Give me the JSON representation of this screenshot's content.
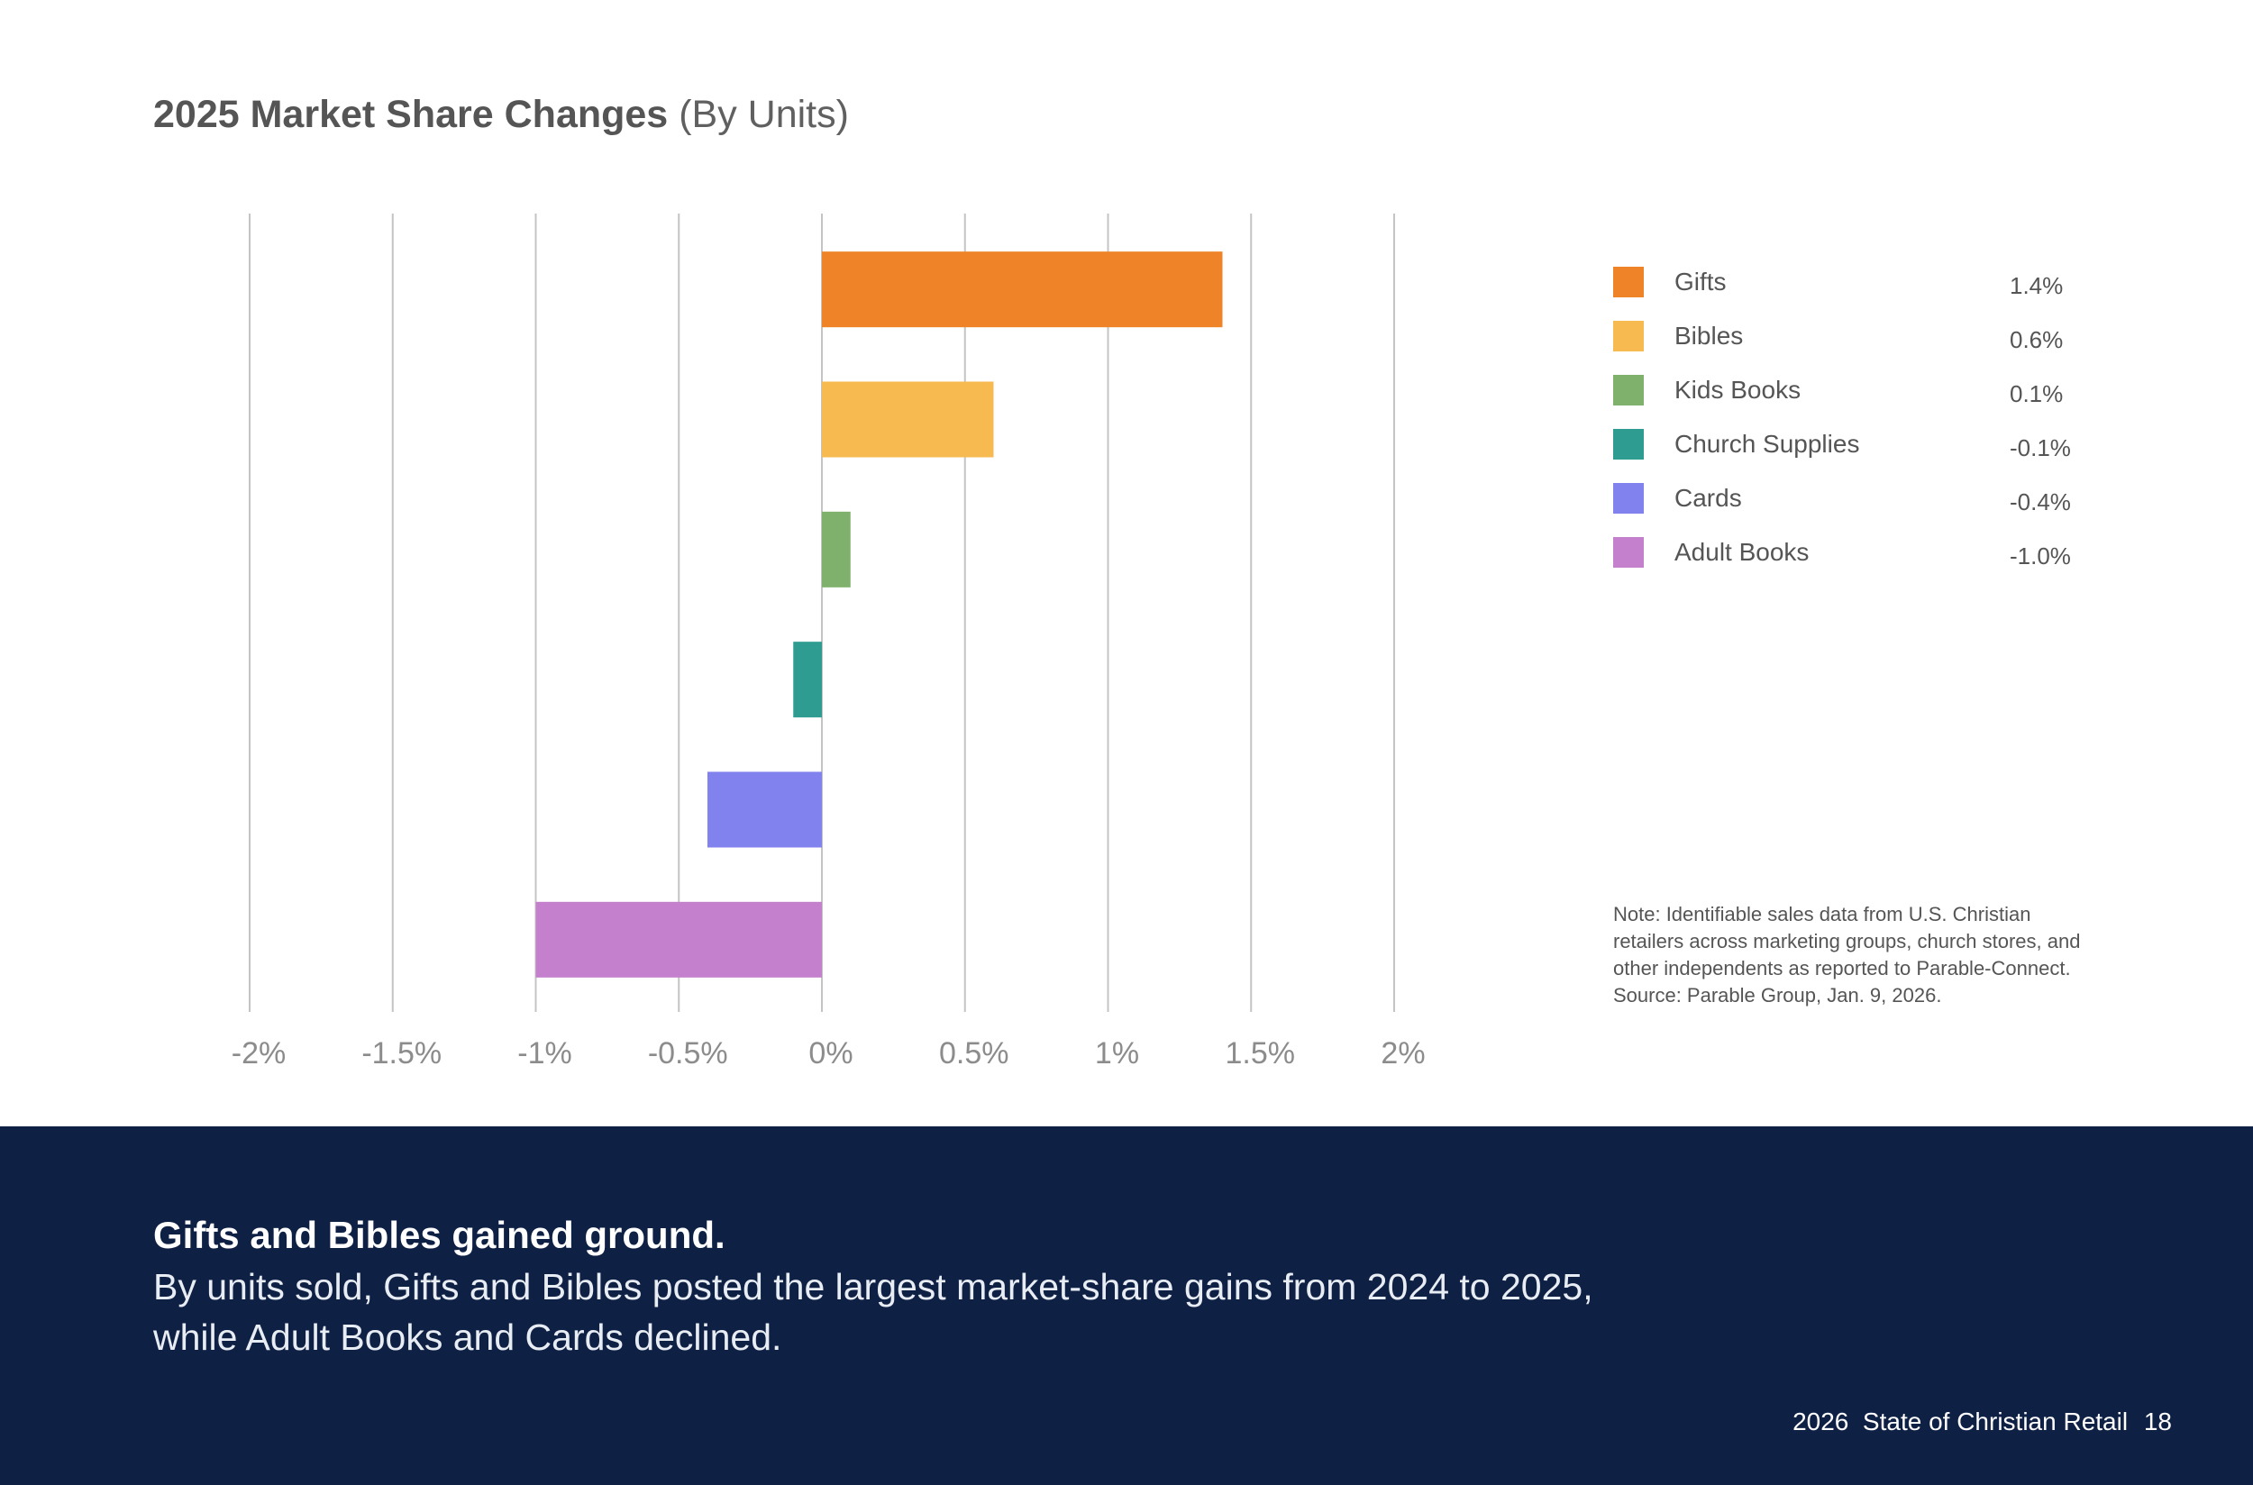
{
  "title": {
    "main": "2025 Market Share Changes",
    "sub": "(By Units)"
  },
  "colors": {
    "Gifts": "#ee8327",
    "Bibles": "#f6ba50",
    "Kids Books": "#7fb16c",
    "Church Supplies": "#2e9c91",
    "Cards": "#8282ee",
    "Adult Books": "#c580cd",
    "footer_bg": "#0f2045"
  },
  "chart_data": {
    "type": "bar",
    "orientation": "horizontal",
    "title": "2025 Market Share Changes (By Units)",
    "categories": [
      "Gifts",
      "Bibles",
      "Kids Books",
      "Church Supplies",
      "Cards",
      "Adult Books"
    ],
    "values": [
      1.4,
      0.6,
      0.1,
      -0.1,
      -0.4,
      -1.0
    ],
    "value_labels": [
      "1.4%",
      "0.6%",
      "0.1%",
      "-0.1%",
      "-0.4%",
      "-1.0%"
    ],
    "xlim": [
      -2,
      2
    ],
    "x_ticks": [
      -2,
      -1.5,
      -1,
      -0.5,
      0,
      0.5,
      1,
      1.5,
      2
    ],
    "x_tick_labels": [
      "-2%",
      "-1.5%",
      "-1%",
      "-0.5%",
      "0%",
      "0.5%",
      "1%",
      "1.5%",
      "2%"
    ],
    "xlabel": "",
    "ylabel": "",
    "grid": true,
    "legend_position": "right"
  },
  "legend": [
    {
      "label": "Gifts",
      "value": "1.4%"
    },
    {
      "label": "Bibles",
      "value": "0.6%"
    },
    {
      "label": "Kids Books",
      "value": "0.1%"
    },
    {
      "label": "Church Supplies",
      "value": "-0.1%"
    },
    {
      "label": "Cards",
      "value": "-0.4%"
    },
    {
      "label": "Adult Books",
      "value": "-1.0%"
    }
  ],
  "note": "Note: Identifiable sales data from U.S. Christian retailers across marketing groups, church stores, and other independents as reported to Parable-Connect. Source: Parable Group, Jan. 9, 2026.",
  "footer": {
    "headline": "Gifts and Bibles gained ground.",
    "body": "By units sold, Gifts and Bibles posted the largest market-share gains from 2024 to 2025, while Adult Books and Cards declined.",
    "publication": "2026  State of Christian Retail",
    "page_number": "18"
  }
}
